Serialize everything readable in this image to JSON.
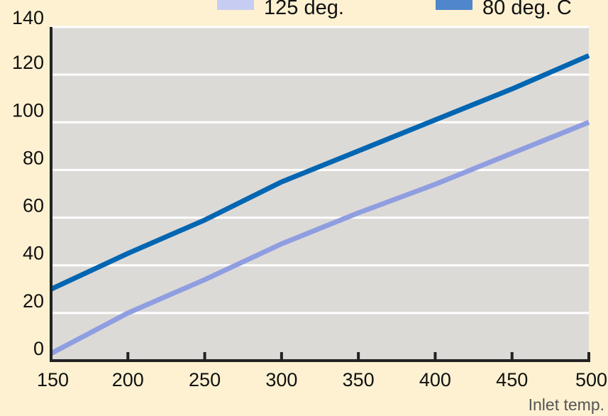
{
  "chart_data": {
    "type": "line",
    "title": "",
    "xlabel": "Inlet temp.",
    "ylabel": "",
    "x": [
      150,
      200,
      250,
      300,
      350,
      400,
      450,
      500
    ],
    "xlim": [
      150,
      500
    ],
    "ylim": [
      0,
      140
    ],
    "xticks": [
      "150",
      "200",
      "250",
      "300",
      "350",
      "400",
      "450",
      "500"
    ],
    "yticks": [
      "0",
      "20",
      "40",
      "60",
      "80",
      "100",
      "120",
      "140"
    ],
    "grid": "horizontal",
    "legend": "top",
    "series": [
      {
        "name": "125 deg.",
        "color": "#8f9ee0",
        "legend_color": "#c7cdf2",
        "values": [
          3,
          20,
          34,
          49,
          62,
          74,
          87,
          100
        ]
      },
      {
        "name": "80 deg. C",
        "color": "#0066b2",
        "legend_color": "#4f86cc",
        "values": [
          30,
          45,
          59,
          75,
          88,
          101,
          114,
          128
        ]
      }
    ],
    "colors": {
      "background": "#fdf1d1",
      "plot_area": "#dcdad7",
      "grid": "#ffffff",
      "axis": "#222222"
    }
  }
}
